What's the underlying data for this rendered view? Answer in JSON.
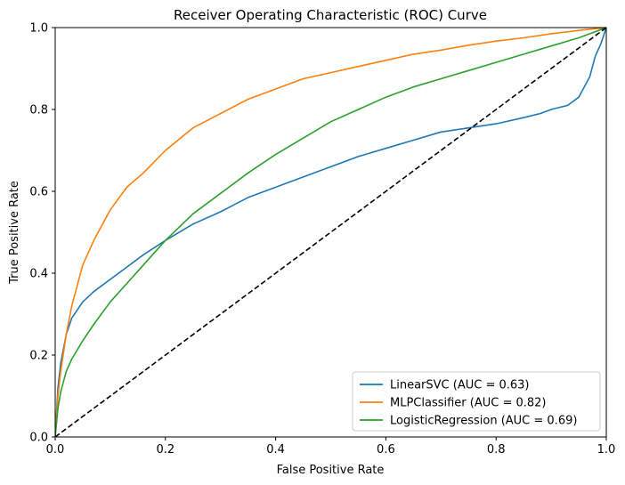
{
  "chart_data": {
    "type": "line",
    "title": "Receiver Operating Characteristic (ROC) Curve",
    "xlabel": "False Positive Rate",
    "ylabel": "True Positive Rate",
    "xlim": [
      0,
      1
    ],
    "ylim": [
      0,
      1
    ],
    "xticks": [
      "0.0",
      "0.2",
      "0.4",
      "0.6",
      "0.8",
      "1.0"
    ],
    "yticks": [
      "0.0",
      "0.2",
      "0.4",
      "0.6",
      "0.8",
      "1.0"
    ],
    "grid": false,
    "legend_position": "lower-right",
    "diagonal": {
      "x": [
        0,
        1
      ],
      "y": [
        0,
        1
      ],
      "color": "#000000",
      "style": "dashed"
    },
    "series": [
      {
        "name": "LinearSVC (AUC = 0.63)",
        "color": "#1f77b4",
        "x": [
          0,
          0.005,
          0.01,
          0.02,
          0.03,
          0.05,
          0.07,
          0.1,
          0.13,
          0.16,
          0.2,
          0.25,
          0.3,
          0.35,
          0.4,
          0.45,
          0.5,
          0.55,
          0.6,
          0.65,
          0.7,
          0.75,
          0.8,
          0.85,
          0.88,
          0.9,
          0.93,
          0.95,
          0.97,
          0.98,
          0.99,
          1.0
        ],
        "y": [
          0,
          0.12,
          0.18,
          0.25,
          0.29,
          0.33,
          0.355,
          0.385,
          0.415,
          0.445,
          0.48,
          0.52,
          0.55,
          0.585,
          0.61,
          0.635,
          0.66,
          0.685,
          0.705,
          0.725,
          0.745,
          0.755,
          0.765,
          0.78,
          0.79,
          0.8,
          0.81,
          0.83,
          0.88,
          0.93,
          0.96,
          1.0
        ]
      },
      {
        "name": "MLPClassifier (AUC = 0.82)",
        "color": "#ff7f0e",
        "x": [
          0,
          0.005,
          0.01,
          0.02,
          0.03,
          0.05,
          0.07,
          0.1,
          0.13,
          0.16,
          0.2,
          0.25,
          0.3,
          0.35,
          0.4,
          0.45,
          0.5,
          0.55,
          0.6,
          0.65,
          0.7,
          0.75,
          0.8,
          0.85,
          0.9,
          0.95,
          1.0
        ],
        "y": [
          0,
          0.1,
          0.16,
          0.25,
          0.32,
          0.42,
          0.48,
          0.555,
          0.61,
          0.645,
          0.7,
          0.755,
          0.79,
          0.825,
          0.85,
          0.875,
          0.89,
          0.905,
          0.92,
          0.935,
          0.945,
          0.957,
          0.967,
          0.975,
          0.985,
          0.993,
          1.0
        ]
      },
      {
        "name": "LogisticRegression (AUC = 0.69)",
        "color": "#2ca02c",
        "x": [
          0,
          0.005,
          0.01,
          0.02,
          0.03,
          0.05,
          0.07,
          0.1,
          0.13,
          0.16,
          0.2,
          0.25,
          0.3,
          0.35,
          0.4,
          0.45,
          0.5,
          0.55,
          0.6,
          0.65,
          0.7,
          0.75,
          0.8,
          0.85,
          0.9,
          0.95,
          1.0
        ],
        "y": [
          0,
          0.07,
          0.11,
          0.16,
          0.19,
          0.235,
          0.275,
          0.33,
          0.375,
          0.42,
          0.48,
          0.545,
          0.595,
          0.645,
          0.69,
          0.73,
          0.77,
          0.8,
          0.83,
          0.855,
          0.875,
          0.895,
          0.915,
          0.935,
          0.955,
          0.975,
          1.0
        ]
      }
    ]
  }
}
